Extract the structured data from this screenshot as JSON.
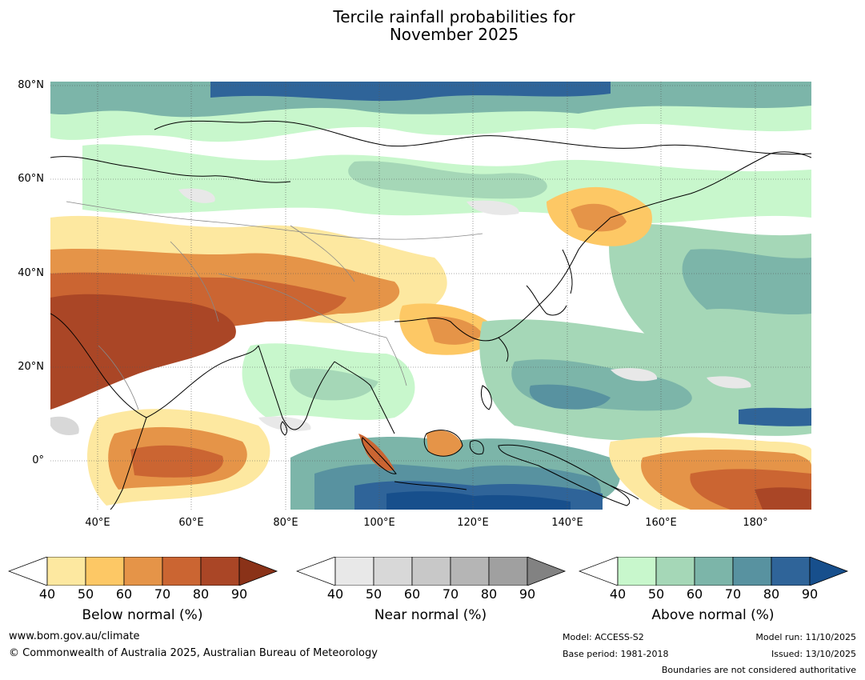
{
  "title_line1": "Tercile rainfall probabilities for",
  "title_line2": "November 2025",
  "lat_labels": [
    "80°N",
    "60°N",
    "40°N",
    "20°N",
    "0°"
  ],
  "lon_labels": [
    "40°E",
    "60°E",
    "80°E",
    "100°E",
    "120°E",
    "140°E",
    "160°E",
    "180°"
  ],
  "colorbars": [
    {
      "name": "below",
      "title": "Below normal (%)",
      "ticks": [
        "40",
        "50",
        "60",
        "70",
        "80",
        "90"
      ],
      "colors": [
        "#ffffff",
        "#fde8a0",
        "#fdc865",
        "#e59448",
        "#cb6532",
        "#aa4626",
        "#8a3218"
      ]
    },
    {
      "name": "near",
      "title": "Near normal (%)",
      "ticks": [
        "40",
        "50",
        "60",
        "70",
        "80",
        "90"
      ],
      "colors": [
        "#ffffff",
        "#e8e8e8",
        "#d8d8d8",
        "#c8c8c8",
        "#b5b5b5",
        "#a0a0a0",
        "#828282"
      ]
    },
    {
      "name": "above",
      "title": "Above normal (%)",
      "ticks": [
        "40",
        "50",
        "60",
        "70",
        "80",
        "90"
      ],
      "colors": [
        "#ffffff",
        "#c8f7cc",
        "#a5d7b7",
        "#7cb5a9",
        "#5892a0",
        "#2f6499",
        "#174f8c"
      ]
    }
  ],
  "footer": {
    "website": "www.bom.gov.au/climate",
    "copyright": "© Commonwealth of Australia 2025, Australian Bureau of Meteorology",
    "model": "Model: ACCESS-S2",
    "base_period": "Base period: 1981-2018",
    "model_run": "Model run: 11/10/2025",
    "issued": "Issued: 13/10/2025",
    "disclaimer": "Boundaries are not considered authoritative"
  }
}
